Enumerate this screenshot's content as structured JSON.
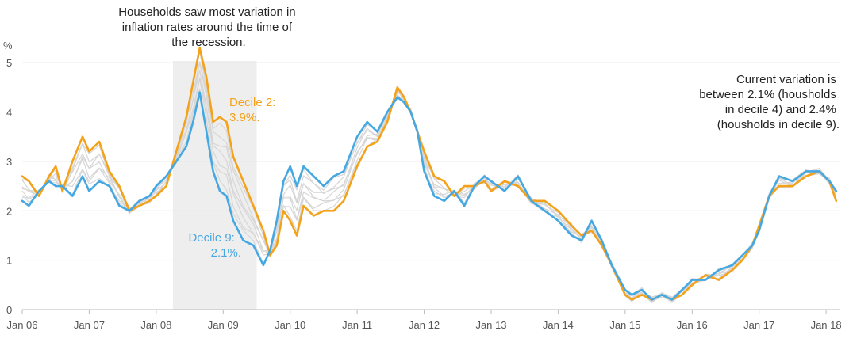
{
  "chart_data": {
    "type": "line",
    "ylabel": "%",
    "ylim": [
      0,
      5.5
    ],
    "y_ticks": [
      0,
      1,
      2,
      3,
      4,
      5
    ],
    "x_ticks": [
      "Jan 06",
      "Jan 07",
      "Jan 08",
      "Jan 09",
      "Jan 10",
      "Jan 11",
      "Jan 12",
      "Jan 13",
      "Jan 14",
      "Jan 15",
      "Jan 16",
      "Jan 17",
      "Jan 18"
    ],
    "x_range_years": [
      2006.0,
      2018.2
    ],
    "grid": "horizontal",
    "shaded_period": {
      "from": 2008.25,
      "to": 2009.5
    },
    "annotations": {
      "recession": [
        "Households saw most variation in",
        "inflation rates around the time of",
        "the recession."
      ],
      "current": [
        "Current variation is",
        "between 2.1% (housholds",
        "in decile 4) and 2.4%",
        "(housholds in decile 9)."
      ],
      "decile2": [
        "Decile 2:",
        "3.9%."
      ],
      "decile9": [
        "Decile 9:",
        "2.1%."
      ]
    },
    "series": [
      {
        "name": "Decile 2",
        "color": "#f5a21b",
        "x": [
          2006.0,
          2006.1,
          2006.25,
          2006.4,
          2006.5,
          2006.6,
          2006.75,
          2006.9,
          2007.0,
          2007.15,
          2007.3,
          2007.45,
          2007.6,
          2007.75,
          2007.9,
          2008.0,
          2008.15,
          2008.3,
          2008.45,
          2008.55,
          2008.65,
          2008.75,
          2008.85,
          2008.95,
          2009.05,
          2009.15,
          2009.3,
          2009.45,
          2009.6,
          2009.7,
          2009.8,
          2009.9,
          2010.0,
          2010.1,
          2010.2,
          2010.35,
          2010.5,
          2010.65,
          2010.8,
          2011.0,
          2011.15,
          2011.3,
          2011.45,
          2011.6,
          2011.7,
          2011.8,
          2011.9,
          2012.0,
          2012.15,
          2012.3,
          2012.45,
          2012.6,
          2012.75,
          2012.9,
          2013.0,
          2013.2,
          2013.4,
          2013.6,
          2013.8,
          2014.0,
          2014.2,
          2014.35,
          2014.5,
          2014.65,
          2014.8,
          2015.0,
          2015.1,
          2015.25,
          2015.4,
          2015.55,
          2015.7,
          2015.85,
          2016.0,
          2016.2,
          2016.4,
          2016.6,
          2016.75,
          2016.9,
          2017.0,
          2017.15,
          2017.3,
          2017.5,
          2017.7,
          2017.9,
          2018.05,
          2018.15
        ],
        "y": [
          2.7,
          2.6,
          2.3,
          2.7,
          2.9,
          2.4,
          3.0,
          3.5,
          3.2,
          3.4,
          2.8,
          2.5,
          2.0,
          2.1,
          2.2,
          2.3,
          2.5,
          3.2,
          3.9,
          4.6,
          5.3,
          4.7,
          3.8,
          3.9,
          3.8,
          3.1,
          2.6,
          2.1,
          1.6,
          1.1,
          1.3,
          2.0,
          1.8,
          1.5,
          2.1,
          1.9,
          2.0,
          2.0,
          2.2,
          2.9,
          3.3,
          3.4,
          3.8,
          4.5,
          4.3,
          4.0,
          3.6,
          3.2,
          2.7,
          2.6,
          2.3,
          2.5,
          2.5,
          2.6,
          2.4,
          2.6,
          2.5,
          2.2,
          2.2,
          2.0,
          1.7,
          1.5,
          1.6,
          1.3,
          0.9,
          0.3,
          0.2,
          0.3,
          0.2,
          0.3,
          0.2,
          0.3,
          0.5,
          0.7,
          0.6,
          0.8,
          1.0,
          1.3,
          1.7,
          2.3,
          2.5,
          2.5,
          2.7,
          2.8,
          2.6,
          2.2
        ]
      },
      {
        "name": "Decile 9",
        "color": "#46a8e2",
        "x": [
          2006.0,
          2006.1,
          2006.25,
          2006.4,
          2006.5,
          2006.6,
          2006.75,
          2006.9,
          2007.0,
          2007.15,
          2007.3,
          2007.45,
          2007.6,
          2007.75,
          2007.9,
          2008.0,
          2008.15,
          2008.3,
          2008.45,
          2008.55,
          2008.65,
          2008.75,
          2008.85,
          2008.95,
          2009.05,
          2009.15,
          2009.3,
          2009.45,
          2009.6,
          2009.7,
          2009.8,
          2009.9,
          2010.0,
          2010.1,
          2010.2,
          2010.35,
          2010.5,
          2010.65,
          2010.8,
          2011.0,
          2011.15,
          2011.3,
          2011.45,
          2011.6,
          2011.7,
          2011.8,
          2011.9,
          2012.0,
          2012.15,
          2012.3,
          2012.45,
          2012.6,
          2012.75,
          2012.9,
          2013.0,
          2013.2,
          2013.4,
          2013.6,
          2013.8,
          2014.0,
          2014.2,
          2014.35,
          2014.5,
          2014.65,
          2014.8,
          2015.0,
          2015.1,
          2015.25,
          2015.4,
          2015.55,
          2015.7,
          2015.85,
          2016.0,
          2016.2,
          2016.4,
          2016.6,
          2016.75,
          2016.9,
          2017.0,
          2017.15,
          2017.3,
          2017.5,
          2017.7,
          2017.9,
          2018.05,
          2018.15
        ],
        "y": [
          2.2,
          2.1,
          2.4,
          2.6,
          2.5,
          2.5,
          2.3,
          2.7,
          2.4,
          2.6,
          2.5,
          2.1,
          2.0,
          2.2,
          2.3,
          2.5,
          2.7,
          3.0,
          3.3,
          3.8,
          4.4,
          3.6,
          2.8,
          2.4,
          2.3,
          1.8,
          1.4,
          1.3,
          0.9,
          1.2,
          1.8,
          2.6,
          2.9,
          2.5,
          2.9,
          2.7,
          2.5,
          2.7,
          2.8,
          3.5,
          3.8,
          3.6,
          4.0,
          4.3,
          4.2,
          4.0,
          3.6,
          2.8,
          2.3,
          2.2,
          2.4,
          2.1,
          2.5,
          2.7,
          2.6,
          2.4,
          2.7,
          2.2,
          2.0,
          1.8,
          1.5,
          1.4,
          1.8,
          1.4,
          0.9,
          0.4,
          0.3,
          0.4,
          0.2,
          0.3,
          0.2,
          0.4,
          0.6,
          0.6,
          0.8,
          0.9,
          1.1,
          1.3,
          1.6,
          2.3,
          2.7,
          2.6,
          2.8,
          2.8,
          2.6,
          2.4
        ]
      }
    ]
  }
}
